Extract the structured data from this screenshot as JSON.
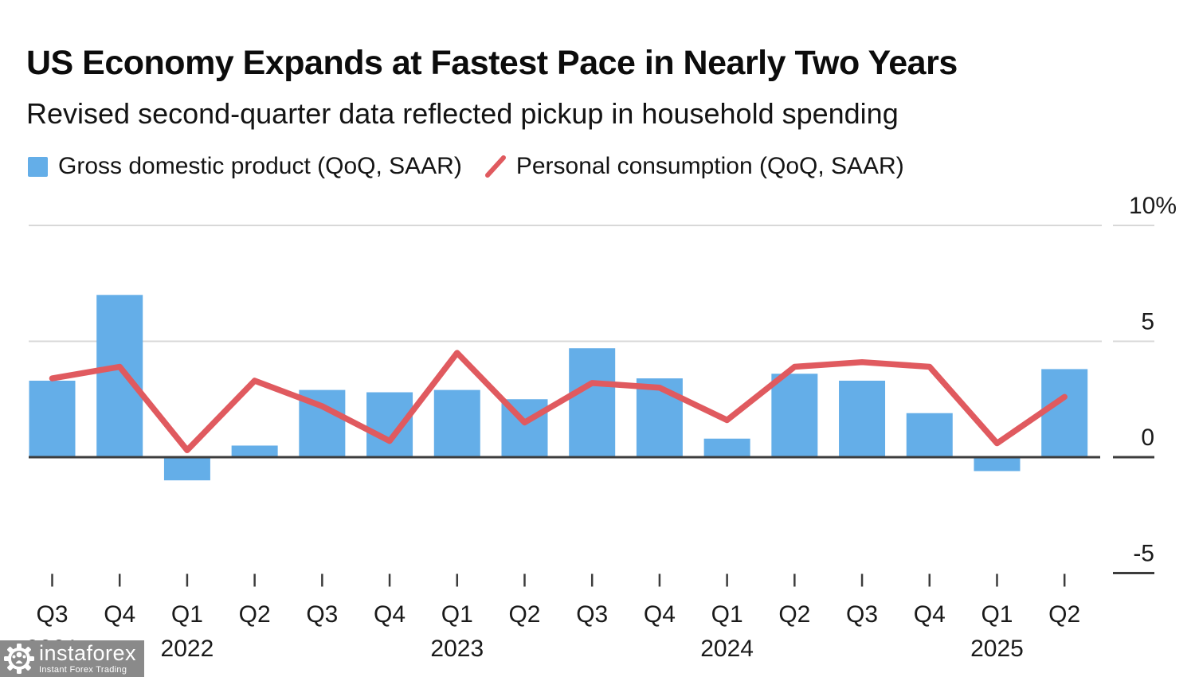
{
  "header": {
    "title": "US Economy Expands at Fastest Pace in Nearly Two Years",
    "subtitle": "Revised second-quarter data reflected pickup in household spending"
  },
  "legend": [
    {
      "label": "Gross domestic product (QoQ, SAAR)",
      "swatch": "square",
      "color": "#64AEE8"
    },
    {
      "label": "Personal consumption (QoQ, SAAR)",
      "swatch": "slash",
      "color": "#E05A5F"
    }
  ],
  "watermark": {
    "brand": "instaforex",
    "tagline": "Instant Forex Trading"
  },
  "chart_data": {
    "type": "bar+line",
    "title": "US Economy Expands at Fastest Pace in Nearly Two Years",
    "categories": [
      "Q3 2021",
      "Q4 2021",
      "Q1 2022",
      "Q2 2022",
      "Q3 2022",
      "Q4 2022",
      "Q1 2023",
      "Q2 2023",
      "Q3 2023",
      "Q4 2023",
      "Q1 2024",
      "Q2 2024",
      "Q3 2024",
      "Q4 2024",
      "Q1 2025",
      "Q2 2025"
    ],
    "x_tick_labels": [
      "Q3",
      "Q4",
      "Q1",
      "Q2",
      "Q3",
      "Q4",
      "Q1",
      "Q2",
      "Q3",
      "Q4",
      "Q1",
      "Q2",
      "Q3",
      "Q4",
      "Q1",
      "Q2"
    ],
    "year_labels": [
      {
        "text": "2021",
        "tick_index": 0
      },
      {
        "text": "2022",
        "tick_index": 2
      },
      {
        "text": "2023",
        "tick_index": 6
      },
      {
        "text": "2024",
        "tick_index": 10
      },
      {
        "text": "2025",
        "tick_index": 14
      }
    ],
    "series": [
      {
        "name": "Gross domestic product (QoQ, SAAR)",
        "type": "bar",
        "color": "#64AEE8",
        "values": [
          3.3,
          7.0,
          -1.0,
          0.5,
          2.9,
          2.8,
          2.9,
          2.5,
          4.7,
          3.4,
          0.8,
          3.6,
          3.3,
          1.9,
          -0.6,
          3.8
        ]
      },
      {
        "name": "Personal consumption (QoQ, SAAR)",
        "type": "line",
        "color": "#E05A5F",
        "values": [
          3.4,
          3.9,
          0.3,
          3.3,
          2.2,
          0.7,
          4.5,
          1.5,
          3.2,
          3.0,
          1.6,
          3.9,
          4.1,
          3.9,
          0.6,
          2.6
        ]
      }
    ],
    "unit": "%",
    "y_ticks": [
      {
        "value": 10,
        "label": "10%"
      },
      {
        "value": 5,
        "label": "5"
      },
      {
        "value": 0,
        "label": "0"
      },
      {
        "value": -5,
        "label": "-5"
      }
    ],
    "ylim": [
      -5,
      10
    ],
    "grid": "horizontal",
    "legend_position": "top"
  }
}
